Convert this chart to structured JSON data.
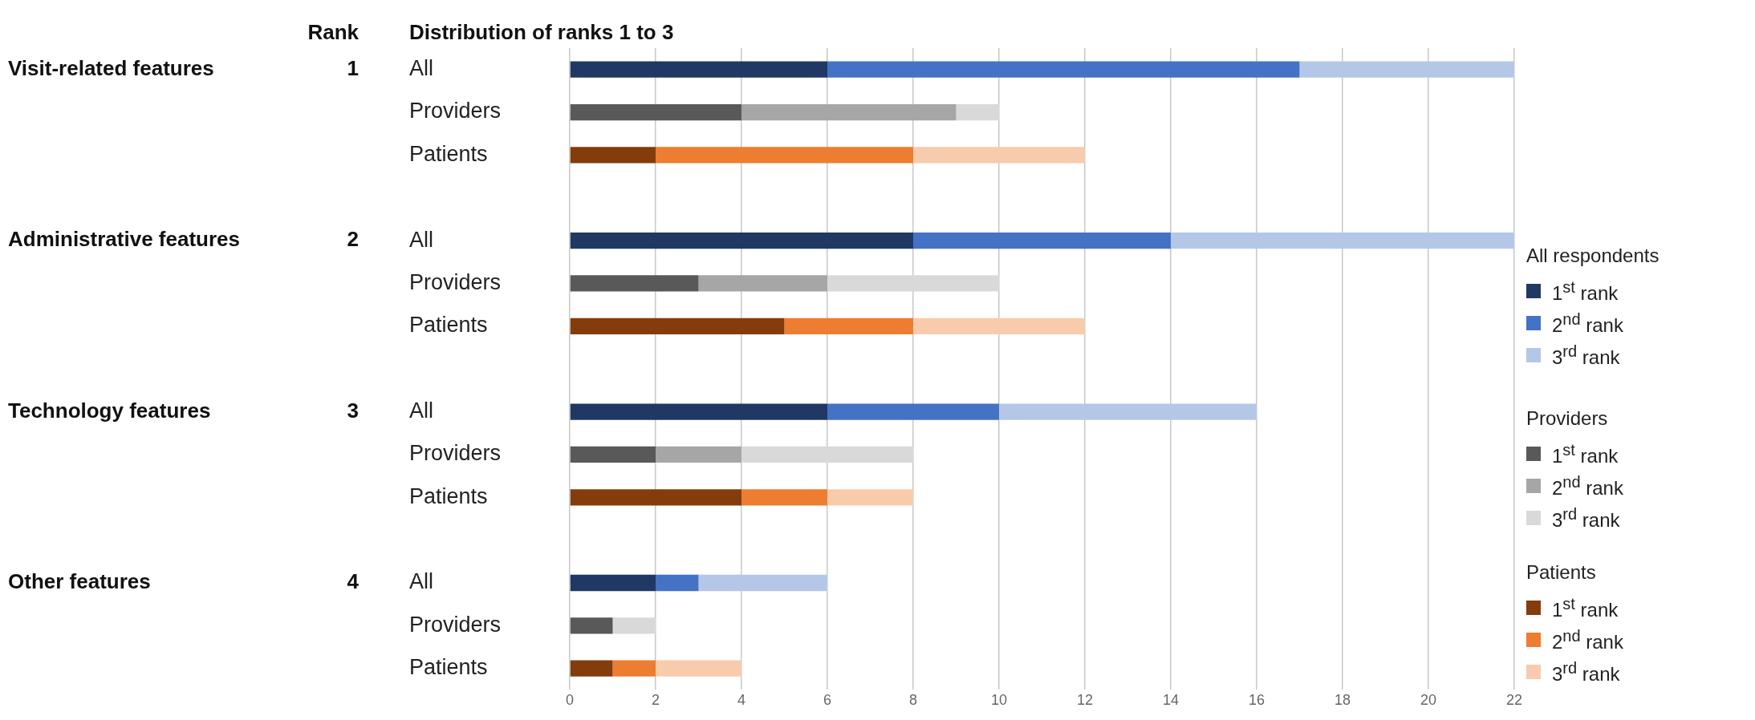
{
  "chart_data": {
    "type": "bar",
    "orientation": "horizontal",
    "stacked": true,
    "title": "Distribution of ranks 1 to 3",
    "legend_title": "All respondents",
    "annotations": [
      "Rank",
      "Visit-related features",
      "1",
      "Administrative features",
      "2",
      "Technology features",
      "3",
      "Other features",
      "4",
      "Providers",
      "Patients"
    ],
    "categories": [
      "All",
      "Providers",
      "Patients",
      null,
      "All",
      "Providers",
      "Patients",
      null,
      "All",
      "Providers",
      "Patients",
      null,
      "All",
      "Providers",
      "Patients"
    ],
    "series": [
      {
        "name": "1$^{st}$ rank",
        "color": "#203864",
        "values": [
          6,
          null,
          null,
          null,
          8,
          null,
          null,
          null,
          6,
          null,
          null,
          null,
          2,
          null,
          null
        ]
      },
      {
        "name": "2$^{nd}$ rank",
        "color": "#4472c4",
        "values": [
          11,
          null,
          null,
          null,
          6,
          null,
          null,
          null,
          4,
          null,
          null,
          null,
          1,
          null,
          null
        ]
      },
      {
        "name": "3$^{rd}$ rank",
        "color": "#b4c7e7",
        "values": [
          5,
          null,
          null,
          null,
          8,
          null,
          null,
          null,
          6,
          null,
          null,
          null,
          3,
          null,
          null
        ]
      },
      {
        "name": "1$^{st}$ rank",
        "color": "#595959",
        "values": [
          null,
          4,
          null,
          null,
          null,
          3,
          null,
          null,
          null,
          2,
          null,
          null,
          null,
          1,
          null
        ]
      },
      {
        "name": "2$^{nd}$ rank",
        "color": "#a6a6a6",
        "values": [
          null,
          5,
          null,
          null,
          null,
          3,
          null,
          null,
          null,
          2,
          null,
          null,
          null,
          null,
          null
        ]
      },
      {
        "name": "3$^{rd}$ rank",
        "color": "#d9d9d9",
        "values": [
          null,
          1,
          null,
          null,
          null,
          4,
          null,
          null,
          null,
          4,
          null,
          null,
          null,
          1,
          null
        ]
      },
      {
        "name": "1$^{st}$ rank",
        "color": "#843c0c",
        "values": [
          null,
          null,
          2,
          null,
          null,
          null,
          5,
          null,
          null,
          null,
          4,
          null,
          null,
          null,
          1
        ]
      },
      {
        "name": "2$^{nd}$ rank",
        "color": "#ed7d31",
        "values": [
          null,
          null,
          6,
          null,
          null,
          null,
          3,
          null,
          null,
          null,
          2,
          null,
          null,
          null,
          1
        ]
      },
      {
        "name": "3$^{rd}$ rank",
        "color": "#f8cbad",
        "values": [
          null,
          null,
          4,
          null,
          null,
          null,
          4,
          null,
          null,
          null,
          2,
          null,
          null,
          null,
          2
        ]
      }
    ],
    "xlim": [
      0,
      22
    ],
    "xticks": [
      0,
      2,
      4,
      6,
      8,
      10,
      12,
      14,
      16,
      18,
      20,
      22
    ],
    "grid": "x",
    "legend": "right"
  }
}
